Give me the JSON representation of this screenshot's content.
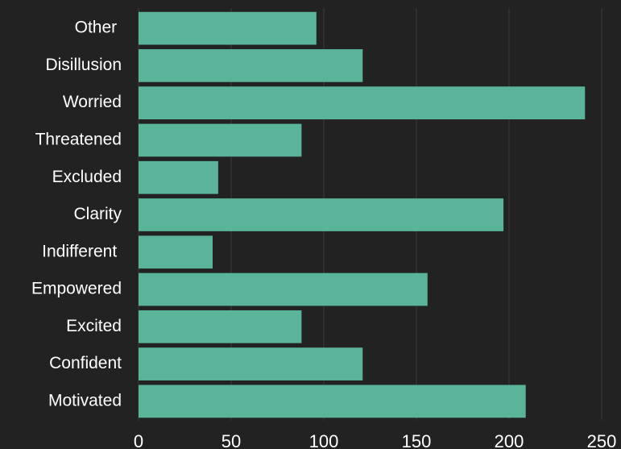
{
  "chart_data": {
    "type": "bar",
    "orientation": "horizontal",
    "categories": [
      "Other ",
      "Disillusion",
      "Worried",
      "Threatened",
      "Excluded",
      "Clarity",
      "Indifferent ",
      "Empowered",
      "Excited",
      "Confident",
      "Motivated"
    ],
    "values": [
      96,
      121,
      241,
      88,
      43,
      197,
      40,
      156,
      88,
      121,
      209
    ],
    "color": "#5ab49a",
    "xlim": [
      0,
      260
    ],
    "xticks": [
      0,
      50,
      100,
      150,
      200,
      250
    ],
    "grid": true
  }
}
